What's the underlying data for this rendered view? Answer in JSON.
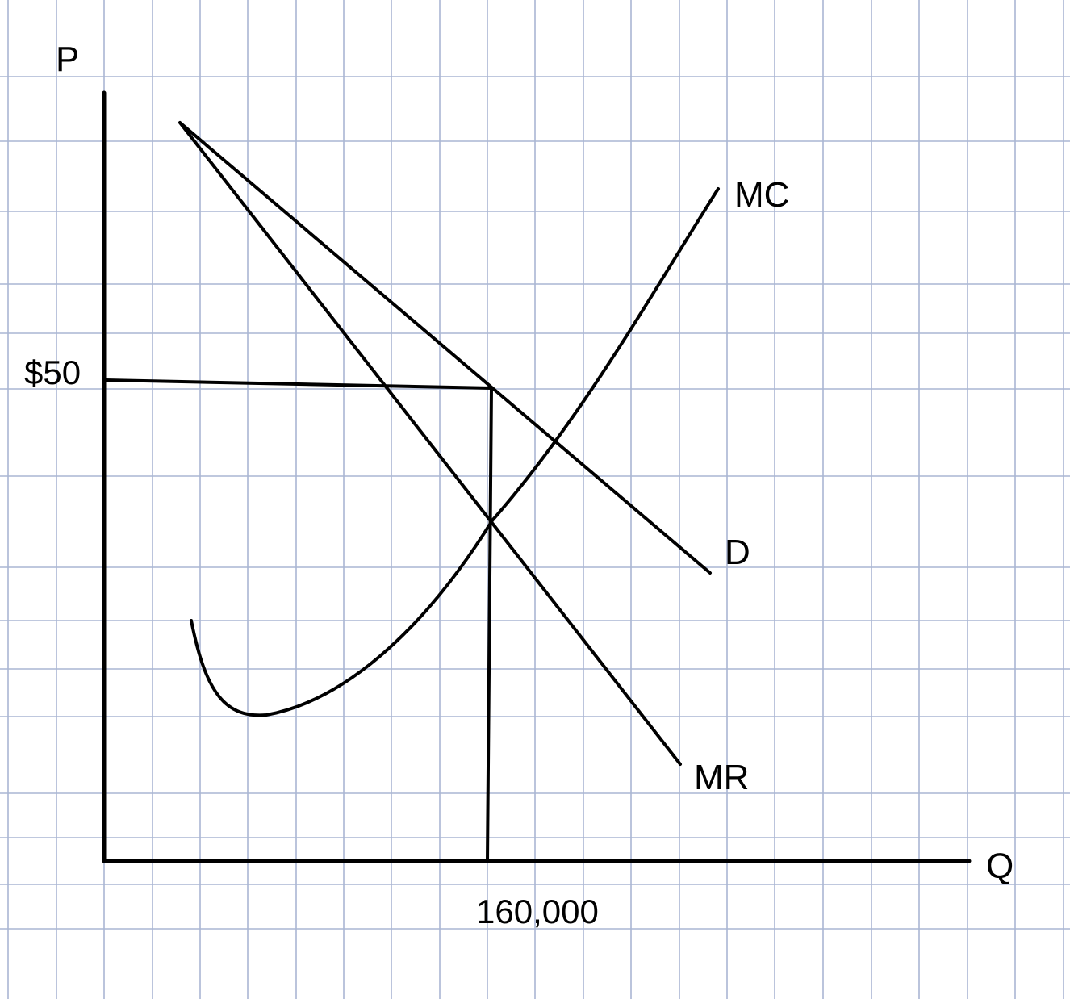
{
  "chart_data": {
    "type": "line",
    "title": "",
    "xlabel": "Q",
    "ylabel": "P",
    "grid": true,
    "x_tick_labels": [
      "160,000"
    ],
    "y_tick_labels": [
      "$50"
    ],
    "series": [
      {
        "name": "MC",
        "label": "MC"
      },
      {
        "name": "D",
        "label": "D"
      },
      {
        "name": "MR",
        "label": "MR"
      }
    ],
    "annotations": {
      "profit_max_quantity": "160,000",
      "profit_max_price": "$50"
    },
    "colors": {
      "grid": "#aab6d3",
      "ink": "#000000",
      "background": "#ffffff"
    }
  }
}
